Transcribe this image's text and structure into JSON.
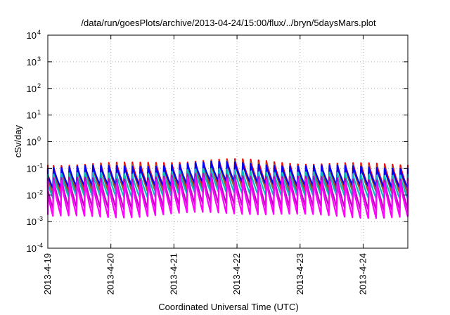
{
  "chart_data": {
    "type": "line",
    "title": "/data/run/goesPlots/archive/2013-04-24/15:00/flux/../bryn/5daysMars.plot",
    "xlabel": "Coordinated Universal Time (UTC)",
    "ylabel": "cSv/day",
    "yscale": "log",
    "ylim": [
      0.0001,
      10000
    ],
    "xlim": [
      "2013-04-19T00:00",
      "2013-04-24T17:00"
    ],
    "x_ticks": [
      "2013-4-19",
      "2013-4-20",
      "2013-4-21",
      "2013-4-22",
      "2013-4-23",
      "2013-4-24"
    ],
    "y_ticks": [
      {
        "base": "10",
        "exp": "-4"
      },
      {
        "base": "10",
        "exp": "-3"
      },
      {
        "base": "10",
        "exp": "-2"
      },
      {
        "base": "10",
        "exp": "-1"
      },
      {
        "base": "10",
        "exp": "0"
      },
      {
        "base": "10",
        "exp": "1"
      },
      {
        "base": "10",
        "exp": "2"
      },
      {
        "base": "10",
        "exp": "3"
      },
      {
        "base": "10",
        "exp": "4"
      }
    ],
    "grid": true,
    "legend": "none",
    "pattern": {
      "description": "sawtooth: sharp rise then exponential-like decay, repeating roughly every 3 hours",
      "period_hours": 3,
      "peak_envelope_date": "2013-04-21T18:00"
    },
    "series": [
      {
        "color": "#ff0000",
        "peak": 0.14,
        "trough": 0.018
      },
      {
        "color": "#a0522d",
        "peak": 0.12,
        "trough": 0.012
      },
      {
        "color": "#0000ff",
        "peak": 0.11,
        "trough": 0.02
      },
      {
        "color": "#00c0c0",
        "peak": 0.06,
        "trough": 0.008
      },
      {
        "color": "#c000c0",
        "peak": 0.04,
        "trough": 0.003
      },
      {
        "color": "#ff00ff",
        "peak": 0.03,
        "trough": 0.0015
      }
    ]
  }
}
